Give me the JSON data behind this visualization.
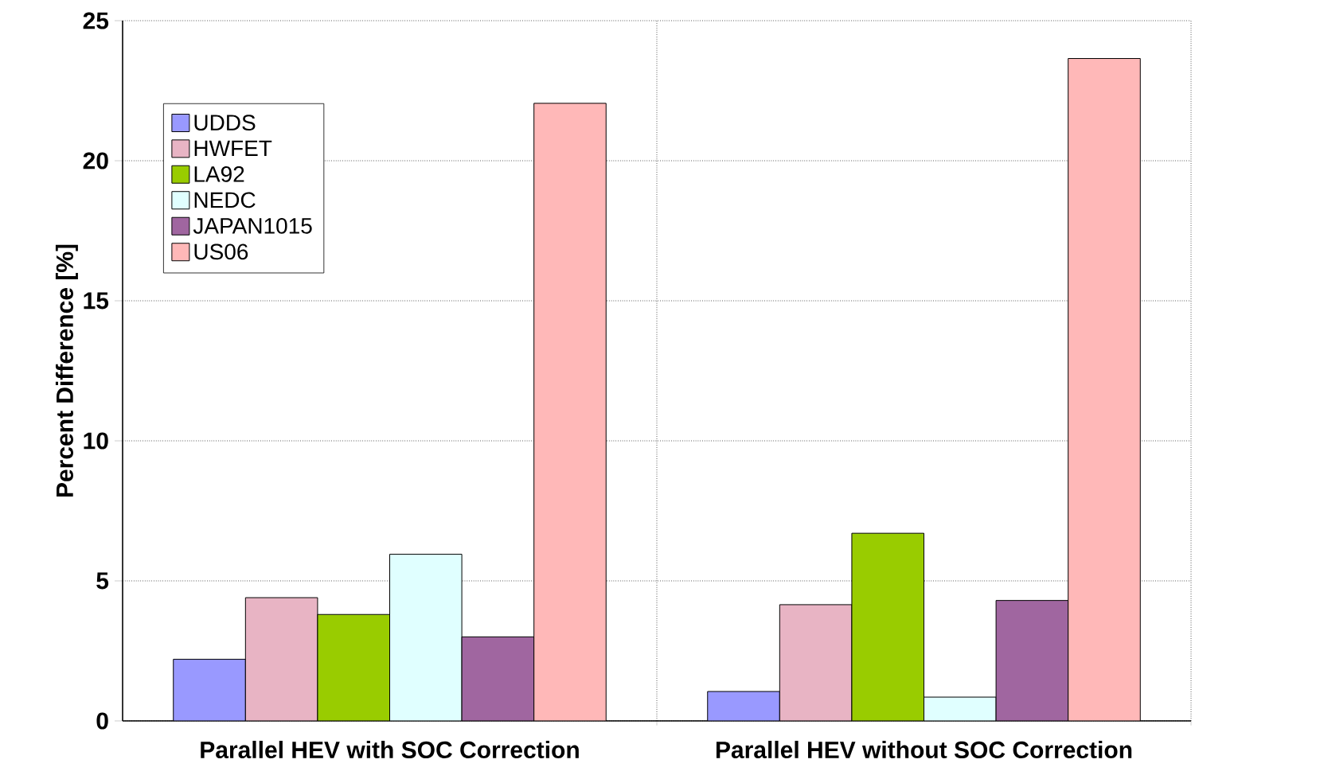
{
  "chart_data": {
    "type": "bar",
    "ylabel": "Percent Difference [%]",
    "categories": [
      "Parallel HEV with SOC Correction",
      "Parallel HEV without SOC Correction"
    ],
    "series": [
      {
        "name": "UDDS",
        "color": "#9999ff",
        "values": [
          2.2,
          1.05
        ]
      },
      {
        "name": "HWFET",
        "color": "#e8b4c4",
        "values": [
          4.4,
          4.15
        ]
      },
      {
        "name": "LA92",
        "color": "#99cc00",
        "values": [
          3.8,
          6.7
        ]
      },
      {
        "name": "NEDC",
        "color": "#e0ffff",
        "values": [
          5.95,
          0.85
        ]
      },
      {
        "name": "JAPAN1015",
        "color": "#a066a0",
        "values": [
          3.0,
          4.3
        ]
      },
      {
        "name": "US06",
        "color": "#ffb8b8",
        "values": [
          22.05,
          23.65
        ]
      }
    ],
    "ylim": [
      0,
      25
    ],
    "yticks": [
      0,
      5,
      10,
      15,
      20,
      25
    ],
    "grid": true,
    "legend": "top left"
  }
}
